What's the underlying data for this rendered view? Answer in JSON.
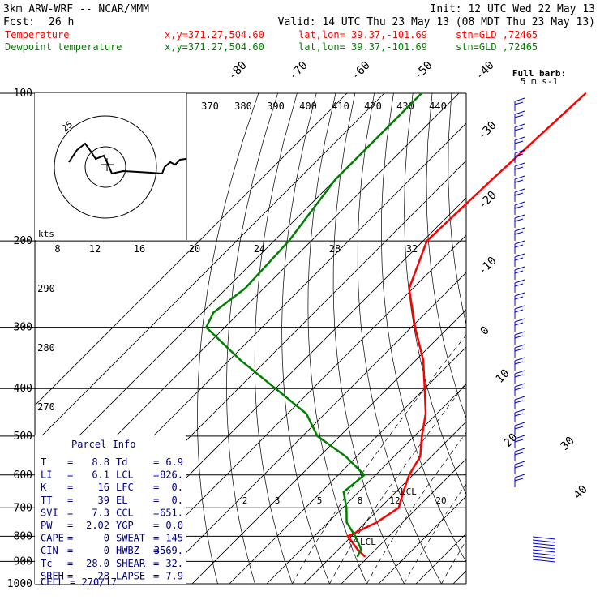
{
  "header": {
    "model_line": "3km ARW-WRF -- NCAR/MMM",
    "init_line": "Init: 12 UTC Wed 22 May 13",
    "fcst_label": "Fcst:",
    "fcst_value": "26 h",
    "valid_line": "Valid: 14 UTC Thu 23 May 13 (08 MDT Thu 23 May 13)"
  },
  "legend": [
    {
      "name": "Temperature",
      "color": "#ff0000",
      "xy": "x,y=371.27,504.60",
      "latlon": "lat,lon= 39.37,-101.69",
      "stn": "stn=GLD ,72465"
    },
    {
      "name": "Dewpoint temperature",
      "color": "#008000",
      "xy": "x,y=371.27,504.60",
      "latlon": "lat,lon= 39.37,-101.69",
      "stn": "stn=GLD ,72465"
    }
  ],
  "barb_legend": {
    "line1": "Full barb:",
    "line2": "5 m s-1"
  },
  "hodograph": {
    "ring_label": "25",
    "kts_label": "kts"
  },
  "parcel_info": {
    "title": "Parcel Info",
    "rows": [
      [
        "T",
        "8.8",
        "Td",
        "6.9"
      ],
      [
        "LI",
        "6.1",
        "LCL",
        "826."
      ],
      [
        "K",
        "16",
        "LFC",
        "0."
      ],
      [
        "TT",
        "39",
        "EL",
        "0."
      ],
      [
        "SVI",
        "7.3",
        "CCL",
        "651."
      ],
      [
        "PW",
        "2.02",
        "YGP",
        "0.0"
      ],
      [
        "CAPE",
        "0",
        "SWEAT",
        "145"
      ],
      [
        "CIN",
        "0",
        "HWBZ",
        "3569."
      ],
      [
        "Tc",
        "28.0",
        "SHEAR",
        "32."
      ],
      [
        "SREH",
        "28",
        "LAPSE",
        "7.9"
      ]
    ],
    "cell_label": "CELL = 270/17"
  },
  "chart_data": {
    "type": "line",
    "title": "",
    "ylabel": "",
    "y_scale": "log-pressure",
    "pressure_levels": [
      100,
      200,
      300,
      400,
      500,
      600,
      700,
      800,
      900,
      1000
    ],
    "isotherm_labels": [
      -80,
      -70,
      -60,
      -50,
      -40,
      -30,
      -20,
      -10,
      0,
      10,
      20,
      30,
      40
    ],
    "theta_labels": [
      370,
      380,
      390,
      400,
      410,
      420,
      430,
      440
    ],
    "theta_left_labels": [
      290,
      280,
      270
    ],
    "theta_e_labels": [
      8,
      12,
      16,
      20,
      24,
      28,
      32
    ],
    "mixing_ratio_labels": [
      2,
      3,
      5,
      8,
      12,
      20
    ],
    "annotations": [
      "LCL",
      "LCL"
    ],
    "series": [
      {
        "name": "Temperature",
        "color": "#ff0000",
        "points": [
          [
            100,
            -56
          ],
          [
            150,
            -58
          ],
          [
            200,
            -59
          ],
          [
            250,
            -51
          ],
          [
            300,
            -39
          ],
          [
            350,
            -28
          ],
          [
            400,
            -20
          ],
          [
            450,
            -13
          ],
          [
            500,
            -8
          ],
          [
            550,
            -3
          ],
          [
            600,
            -1
          ],
          [
            650,
            2
          ],
          [
            700,
            5
          ],
          [
            750,
            3
          ],
          [
            800,
            -1
          ],
          [
            850,
            5
          ],
          [
            880,
            9
          ]
        ]
      },
      {
        "name": "Dewpoint temperature",
        "color": "#008000",
        "points": [
          [
            100,
            -100
          ],
          [
            150,
            -100
          ],
          [
            200,
            -96
          ],
          [
            250,
            -95
          ],
          [
            280,
            -97
          ],
          [
            300,
            -95
          ],
          [
            350,
            -77
          ],
          [
            400,
            -60
          ],
          [
            450,
            -45
          ],
          [
            500,
            -36
          ],
          [
            550,
            -23
          ],
          [
            600,
            -13
          ],
          [
            650,
            -14
          ],
          [
            700,
            -9
          ],
          [
            750,
            -5
          ],
          [
            800,
            1
          ],
          [
            850,
            6
          ],
          [
            880,
            7
          ]
        ]
      }
    ]
  }
}
